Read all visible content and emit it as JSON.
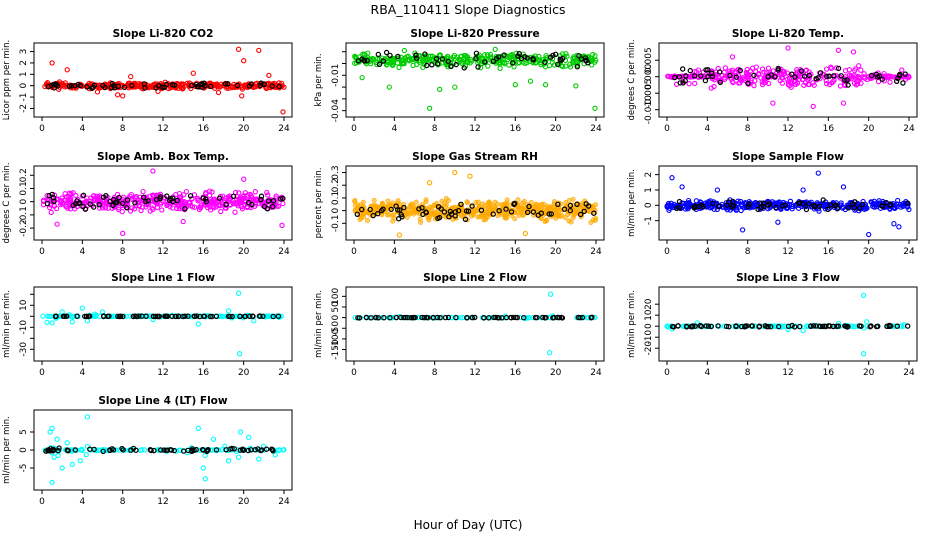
{
  "figure": {
    "title": "RBA_110411  Slope Diagnostics",
    "xlabel": "Hour of Day (UTC)"
  },
  "chart_data": [
    {
      "type": "scatter",
      "title": "Slope Li-820 CO2",
      "ylabel": "Licor ppm per min.",
      "xlim": [
        0,
        24
      ],
      "ylim": [
        -2.4,
        3.4
      ],
      "yticks": [
        -2,
        -1,
        0,
        1,
        2,
        3
      ],
      "xticks": [
        0,
        4,
        8,
        12,
        16,
        20,
        24
      ],
      "color": "#ff0000",
      "spread": 0.22,
      "n": 360,
      "seed": 11,
      "black": {
        "n": 55,
        "spread": 0.2
      },
      "outliers": [
        [
          1,
          2.0
        ],
        [
          2.5,
          1.4
        ],
        [
          5.5,
          -0.55
        ],
        [
          7.5,
          -0.8
        ],
        [
          8.0,
          -0.9
        ],
        [
          11.5,
          -0.5
        ],
        [
          15.0,
          1.1
        ],
        [
          19.5,
          3.2
        ],
        [
          20.0,
          2.2
        ],
        [
          21.5,
          3.1
        ],
        [
          23.9,
          -2.3
        ],
        [
          19.8,
          -0.9
        ],
        [
          22.5,
          0.9
        ],
        [
          8.8,
          0.8
        ],
        [
          17.5,
          -0.6
        ]
      ]
    },
    {
      "type": "scatter",
      "title": "Slope Li-820 Pressure",
      "ylabel": "kPa per min.",
      "xlim": [
        0,
        24
      ],
      "ylim": [
        -0.042,
        0.014
      ],
      "yticks": [
        -0.04,
        -0.03,
        -0.02,
        -0.01,
        0.0,
        0.01
      ],
      "ytick_labels": [
        "-0.04",
        "",
        "",
        "-0.01",
        "",
        ""
      ],
      "xticks": [
        0,
        4,
        8,
        12,
        16,
        20,
        24
      ],
      "color": "#00cc00",
      "center": 0.003,
      "spread": 0.005,
      "n": 330,
      "seed": 22,
      "black": {
        "n": 55,
        "spread": 0.005
      },
      "outliers": [
        [
          7.5,
          -0.038
        ],
        [
          23.9,
          -0.038
        ],
        [
          10.0,
          -0.02
        ],
        [
          16.0,
          -0.018
        ],
        [
          3.5,
          -0.02
        ],
        [
          14.0,
          0.012
        ],
        [
          8.5,
          -0.022
        ],
        [
          17.5,
          -0.015
        ],
        [
          5.0,
          0.011
        ],
        [
          19.0,
          -0.018
        ],
        [
          0.8,
          -0.012
        ],
        [
          22.0,
          -0.019
        ]
      ]
    },
    {
      "type": "scatter",
      "title": "Slope Li-820 Temp.",
      "ylabel": "degrees C per min.",
      "xlim": [
        0,
        24
      ],
      "ylim": [
        -0.011,
        0.009
      ],
      "yticks": [
        -0.01,
        -0.005,
        0.0,
        0.005
      ],
      "ytick_labels": [
        "-0.010",
        "-0.005",
        "0.000",
        "0.005"
      ],
      "xticks": [
        0,
        4,
        8,
        12,
        16,
        20,
        24
      ],
      "color": "#ff00ff",
      "spread": 0.0028,
      "n": 330,
      "seed": 33,
      "flat": [
        [
          0,
          4
        ],
        [
          20,
          24
        ]
      ],
      "black": {
        "n": 55,
        "spread": 0.002
      },
      "outliers": [
        [
          12.0,
          0.009
        ],
        [
          17.0,
          0.008
        ],
        [
          14.5,
          -0.009
        ],
        [
          17.5,
          -0.008
        ],
        [
          18.5,
          0.0075
        ],
        [
          10.5,
          -0.008
        ],
        [
          6.5,
          0.006
        ]
      ]
    },
    {
      "type": "scatter",
      "title": "Slope Amb. Box Temp.",
      "ylabel": "degrees C per min.",
      "xlim": [
        0,
        24
      ],
      "ylim": [
        -0.26,
        0.24
      ],
      "yticks": [
        -0.2,
        -0.1,
        0.0,
        0.1,
        0.2
      ],
      "xticks": [
        0,
        4,
        8,
        12,
        16,
        20,
        24
      ],
      "color": "#ff00ff",
      "spread": 0.06,
      "n": 420,
      "seed": 44,
      "black": {
        "n": 60,
        "spread": 0.05
      },
      "outliers": [
        [
          8.0,
          -0.24
        ],
        [
          11.0,
          0.25
        ],
        [
          1.5,
          -0.17
        ],
        [
          23.8,
          -0.18
        ],
        [
          14.0,
          -0.15
        ],
        [
          20.0,
          0.17
        ]
      ]
    },
    {
      "type": "scatter",
      "title": "Slope Gas Stream RH",
      "ylabel": "percent per min.",
      "xlim": [
        0,
        24
      ],
      "ylim": [
        -0.2,
        0.32
      ],
      "yticks": [
        -0.1,
        0.0,
        0.1,
        0.2,
        0.3
      ],
      "xticks": [
        0,
        4,
        8,
        12,
        16,
        20,
        24
      ],
      "color": "#ffaa00",
      "spread": 0.07,
      "n": 520,
      "seed": 55,
      "filled": true,
      "black": {
        "n": 60,
        "spread": 0.055
      },
      "outliers": [
        [
          10.0,
          0.3
        ],
        [
          11.5,
          0.27
        ],
        [
          7.5,
          0.22
        ],
        [
          4.5,
          -0.2
        ],
        [
          17.0,
          -0.18
        ]
      ]
    },
    {
      "type": "scatter",
      "title": "Slope Sample Flow",
      "ylabel": "ml/min per min.",
      "xlim": [
        0,
        24
      ],
      "ylim": [
        -2.0,
        2.3
      ],
      "yticks": [
        -1,
        0,
        1,
        2
      ],
      "xticks": [
        0,
        4,
        8,
        12,
        16,
        20,
        24
      ],
      "color": "#0000ff",
      "spread": 0.26,
      "n": 380,
      "seed": 66,
      "black": {
        "n": 55,
        "spread": 0.25
      },
      "outliers": [
        [
          0.5,
          1.8
        ],
        [
          15.0,
          2.1
        ],
        [
          20.0,
          -1.9
        ],
        [
          23.0,
          -1.4
        ],
        [
          7.5,
          -1.6
        ],
        [
          11.0,
          -1.1
        ],
        [
          5.0,
          1.0
        ],
        [
          17.5,
          1.2
        ],
        [
          22.5,
          -1.2
        ],
        [
          1.5,
          1.2
        ],
        [
          13.5,
          1.0
        ]
      ]
    },
    {
      "type": "scatter",
      "title": "Slope Line 1 Flow",
      "ylabel": "ml/min per min.",
      "xlim": [
        0,
        24
      ],
      "ylim": [
        -37,
        23
      ],
      "yticks": [
        -30,
        -20,
        -10,
        0,
        10,
        20
      ],
      "ytick_labels": [
        "-30",
        "",
        "-10",
        "",
        "10",
        ""
      ],
      "xticks": [
        0,
        4,
        8,
        12,
        16,
        20,
        24
      ],
      "color": "#00ffff",
      "spread": 1.6,
      "n": 150,
      "seed": 77,
      "flat": [
        [
          0,
          24
        ]
      ],
      "black": {
        "n": 70,
        "spread": 0.2
      },
      "outliers": [
        [
          19.5,
          21
        ],
        [
          19.6,
          -34
        ],
        [
          4.0,
          7.5
        ],
        [
          1.0,
          -6
        ],
        [
          3.0,
          -5
        ],
        [
          2.0,
          4
        ],
        [
          15.5,
          -7
        ],
        [
          18.5,
          5
        ],
        [
          21.0,
          -4
        ],
        [
          6.0,
          4
        ],
        [
          11.0,
          -3
        ],
        [
          4.5,
          -4
        ],
        [
          0.5,
          -5.5
        ]
      ]
    },
    {
      "type": "scatter",
      "title": "Slope Line 2 Flow",
      "ylabel": "ml/min per min.",
      "xlim": [
        0,
        24
      ],
      "ylim": [
        -185,
        125
      ],
      "yticks": [
        -150,
        -100,
        -50,
        0,
        50,
        100
      ],
      "xticks": [
        0,
        4,
        8,
        12,
        16,
        20,
        24
      ],
      "color": "#00ffff",
      "spread": 2,
      "n": 70,
      "seed": 88,
      "flat": [
        [
          0,
          24
        ]
      ],
      "black": {
        "n": 70,
        "spread": 1
      },
      "outliers": [
        [
          19.5,
          110
        ],
        [
          19.4,
          -165
        ],
        [
          4.5,
          5
        ],
        [
          15.0,
          6
        ],
        [
          19.7,
          8
        ],
        [
          17.0,
          -4
        ]
      ]
    },
    {
      "type": "scatter",
      "title": "Slope Line 3 Flow",
      "ylabel": "ml/min per min.",
      "xlim": [
        0,
        24
      ],
      "ylim": [
        -28,
        32
      ],
      "yticks": [
        -20,
        -10,
        0,
        10,
        20
      ],
      "xticks": [
        0,
        4,
        8,
        12,
        16,
        20,
        24
      ],
      "color": "#00ffff",
      "spread": 1.2,
      "n": 110,
      "seed": 99,
      "flat": [
        [
          0,
          24
        ]
      ],
      "black": {
        "n": 70,
        "spread": 0.6
      },
      "outliers": [
        [
          19.5,
          28
        ],
        [
          19.5,
          -25
        ],
        [
          3.0,
          3
        ],
        [
          0.5,
          -2.5
        ],
        [
          12.0,
          -3
        ],
        [
          13.5,
          -4
        ],
        [
          17.0,
          2.5
        ],
        [
          19.8,
          4
        ],
        [
          23.5,
          1.5
        ]
      ]
    },
    {
      "type": "scatter",
      "title": "Slope Line 4 (LT) Flow",
      "ylabel": "ml/min per min.",
      "xlim": [
        0,
        24
      ],
      "ylim": [
        -10,
        10
      ],
      "yticks": [
        -5,
        0,
        5
      ],
      "xticks": [
        0,
        4,
        8,
        12,
        16,
        20,
        24
      ],
      "color": "#00ffff",
      "spread": 1.6,
      "n": 110,
      "seed": 111,
      "flat": [
        [
          0,
          24
        ]
      ],
      "black": {
        "n": 70,
        "spread": 0.4
      },
      "outliers": [
        [
          4.5,
          9.2
        ],
        [
          1.0,
          -9
        ],
        [
          1.0,
          6
        ],
        [
          0.8,
          5
        ],
        [
          1.5,
          3
        ],
        [
          2.0,
          -5
        ],
        [
          2.5,
          2
        ],
        [
          3.0,
          -4
        ],
        [
          15.5,
          6
        ],
        [
          16.0,
          -5
        ],
        [
          16.2,
          -8
        ],
        [
          17.0,
          3
        ],
        [
          18.5,
          -3
        ],
        [
          19.7,
          5
        ],
        [
          20.5,
          3.5
        ],
        [
          21.5,
          -2.5
        ],
        [
          19.5,
          -2
        ],
        [
          3.8,
          -3
        ],
        [
          1.2,
          -2
        ]
      ]
    }
  ]
}
